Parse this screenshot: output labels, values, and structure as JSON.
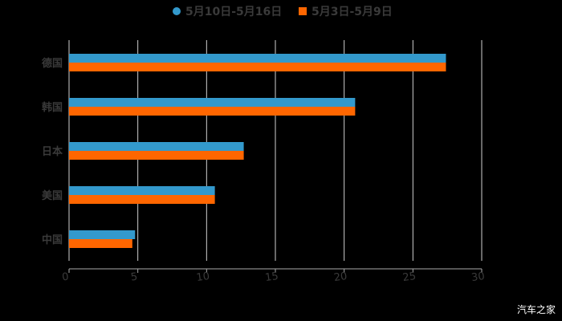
{
  "legend": {
    "items": [
      {
        "label": "5月10日-5月16日",
        "color": "#3399cc",
        "shape": "circle"
      },
      {
        "label": "5月3日-5月9日",
        "color": "#ff6600",
        "shape": "square"
      }
    ]
  },
  "watermark": "汽车之家",
  "colors": {
    "background": "#000000",
    "grid": "#d0d0d0",
    "text": "#3a3a3a",
    "series1": "#3399cc",
    "series2": "#ff6600"
  },
  "chart_data": {
    "type": "bar",
    "orientation": "horizontal",
    "title": "",
    "xlabel": "",
    "ylabel": "",
    "categories": [
      "德国",
      "韩国",
      "日本",
      "美国",
      "中国"
    ],
    "series": [
      {
        "name": "5月10日-5月16日",
        "color": "#3399cc",
        "values": [
          27.4,
          20.8,
          12.7,
          10.6,
          4.8
        ]
      },
      {
        "name": "5月3日-5月9日",
        "color": "#ff6600",
        "values": [
          27.4,
          20.8,
          12.7,
          10.6,
          4.6
        ]
      }
    ],
    "xlim": [
      0,
      30
    ],
    "xticks": [
      0,
      5,
      10,
      15,
      20,
      25,
      30
    ],
    "grid": true,
    "legend_position": "top"
  }
}
